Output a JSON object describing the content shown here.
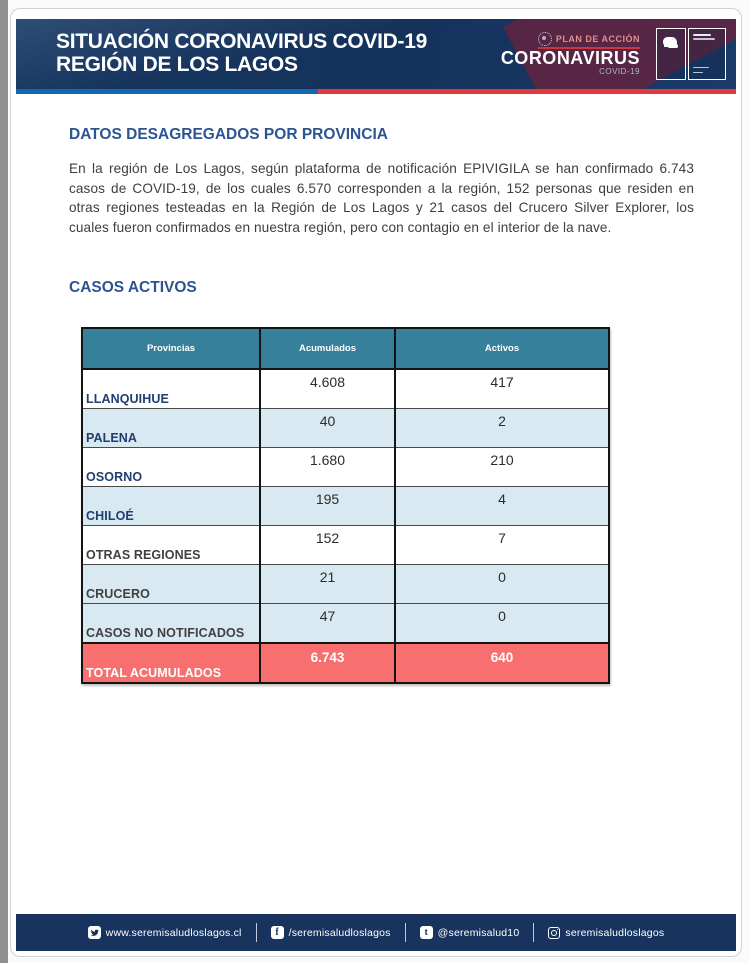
{
  "header": {
    "title_line1": "SITUACIÓN CORONAVIRUS COVID-19",
    "title_line2": "REGIÓN DE LOS LAGOS",
    "plan": {
      "label": "PLAN DE ACCIÓN",
      "brand": "CORONAVIRUS",
      "sub": "COVID-19"
    }
  },
  "sections": {
    "provincia_title": "DATOS DESAGREGADOS POR PROVINCIA",
    "paragraph": "En la región de Los Lagos, según plataforma de notificación EPIVIGILA se han confirmado 6.743 casos de COVID-19, de los cuales 6.570 corresponden a la región, 152 personas que residen en otras regiones testeadas en la Región de Los Lagos y 21 casos del Crucero Silver Explorer, los cuales fueron confirmados en nuestra región, pero con contagio en el interior de la nave.",
    "activos_title": "CASOS ACTIVOS"
  },
  "table": {
    "columns": [
      "Provincias",
      "Acumulados",
      "Activos"
    ],
    "rows": [
      {
        "provincia": "LLANQUIHUE",
        "acumulados": "4.608",
        "activos": "417",
        "bg": "#ffffff",
        "label_color": "#1f3f6e"
      },
      {
        "provincia": "PALENA",
        "acumulados": "40",
        "activos": "2",
        "bg": "#d8e9f1",
        "label_color": "#1f3f6e"
      },
      {
        "provincia": "OSORNO",
        "acumulados": "1.680",
        "activos": "210",
        "bg": "#ffffff",
        "label_color": "#1f3f6e"
      },
      {
        "provincia": "CHILOÉ",
        "acumulados": "195",
        "activos": "4",
        "bg": "#d8e9f1",
        "label_color": "#1f3f6e"
      },
      {
        "provincia": "OTRAS REGIONES",
        "acumulados": "152",
        "activos": "7",
        "bg": "#ffffff",
        "label_color": "#404040"
      },
      {
        "provincia": "CRUCERO",
        "acumulados": "21",
        "activos": "0",
        "bg": "#d8e9f1",
        "label_color": "#404040"
      },
      {
        "provincia": "CASOS NO NOTIFICADOS",
        "acumulados": "47",
        "activos": "0",
        "bg": "#d8e9f1",
        "label_color": "#404040"
      }
    ],
    "total": {
      "label": "TOTAL ACUMULADOS",
      "acumulados": "6.743",
      "activos": "640"
    }
  },
  "footer": {
    "items": [
      {
        "icon": "twitter",
        "text": "www.seremisaludloslagos.cl"
      },
      {
        "icon": "facebook",
        "text": "/seremisaludloslagos"
      },
      {
        "icon": "tumblr",
        "text": "@seremisalud10"
      },
      {
        "icon": "instagram",
        "text": "seremisaludloslagos"
      }
    ]
  },
  "colors": {
    "banner_navy": "#16355f",
    "footer_navy": "#18335e",
    "stripe_blue": "#1467b0",
    "stripe_red": "#e23a3c",
    "section_title_blue": "#2b5491",
    "table_header_teal": "#36809b",
    "row_light_blue": "#d8e9f1",
    "total_red": "#f7706f"
  }
}
